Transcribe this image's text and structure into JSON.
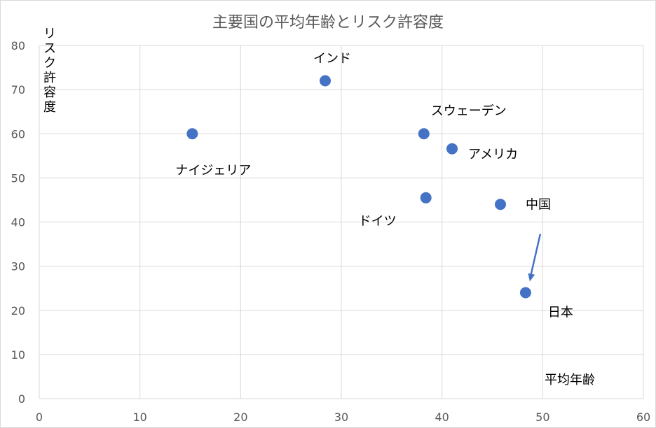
{
  "chart_data": {
    "type": "scatter",
    "title": "主要国の平均年齢とリスク許容度",
    "xlabel": "平均年齢",
    "ylabel": "リスク許容度",
    "xlim": [
      0,
      60
    ],
    "ylim": [
      0,
      80
    ],
    "xticks": [
      0,
      10,
      20,
      30,
      40,
      50,
      60
    ],
    "yticks": [
      0,
      10,
      20,
      30,
      40,
      50,
      60,
      70,
      80
    ],
    "grid": true,
    "legend": "none",
    "series": [
      {
        "points": [
          {
            "label": "ナイジェリア",
            "x": 15.2,
            "y": 60
          },
          {
            "label": "インド",
            "x": 28.4,
            "y": 72
          },
          {
            "label": "スウェーデン",
            "x": 38.2,
            "y": 60
          },
          {
            "label": "アメリカ",
            "x": 41,
            "y": 56.6
          },
          {
            "label": "ドイツ",
            "x": 38.4,
            "y": 45.5
          },
          {
            "label": "中国",
            "x": 45.8,
            "y": 44
          },
          {
            "label": "日本",
            "x": 48.3,
            "y": 24
          }
        ]
      }
    ],
    "annotations": [
      {
        "type": "arrow",
        "points_to": "日本"
      }
    ],
    "colors": {
      "marker": "#4472c4",
      "grid": "#d9d9d9",
      "title_text": "#595959",
      "tick_text": "#595959",
      "label_text": "#000000"
    }
  }
}
